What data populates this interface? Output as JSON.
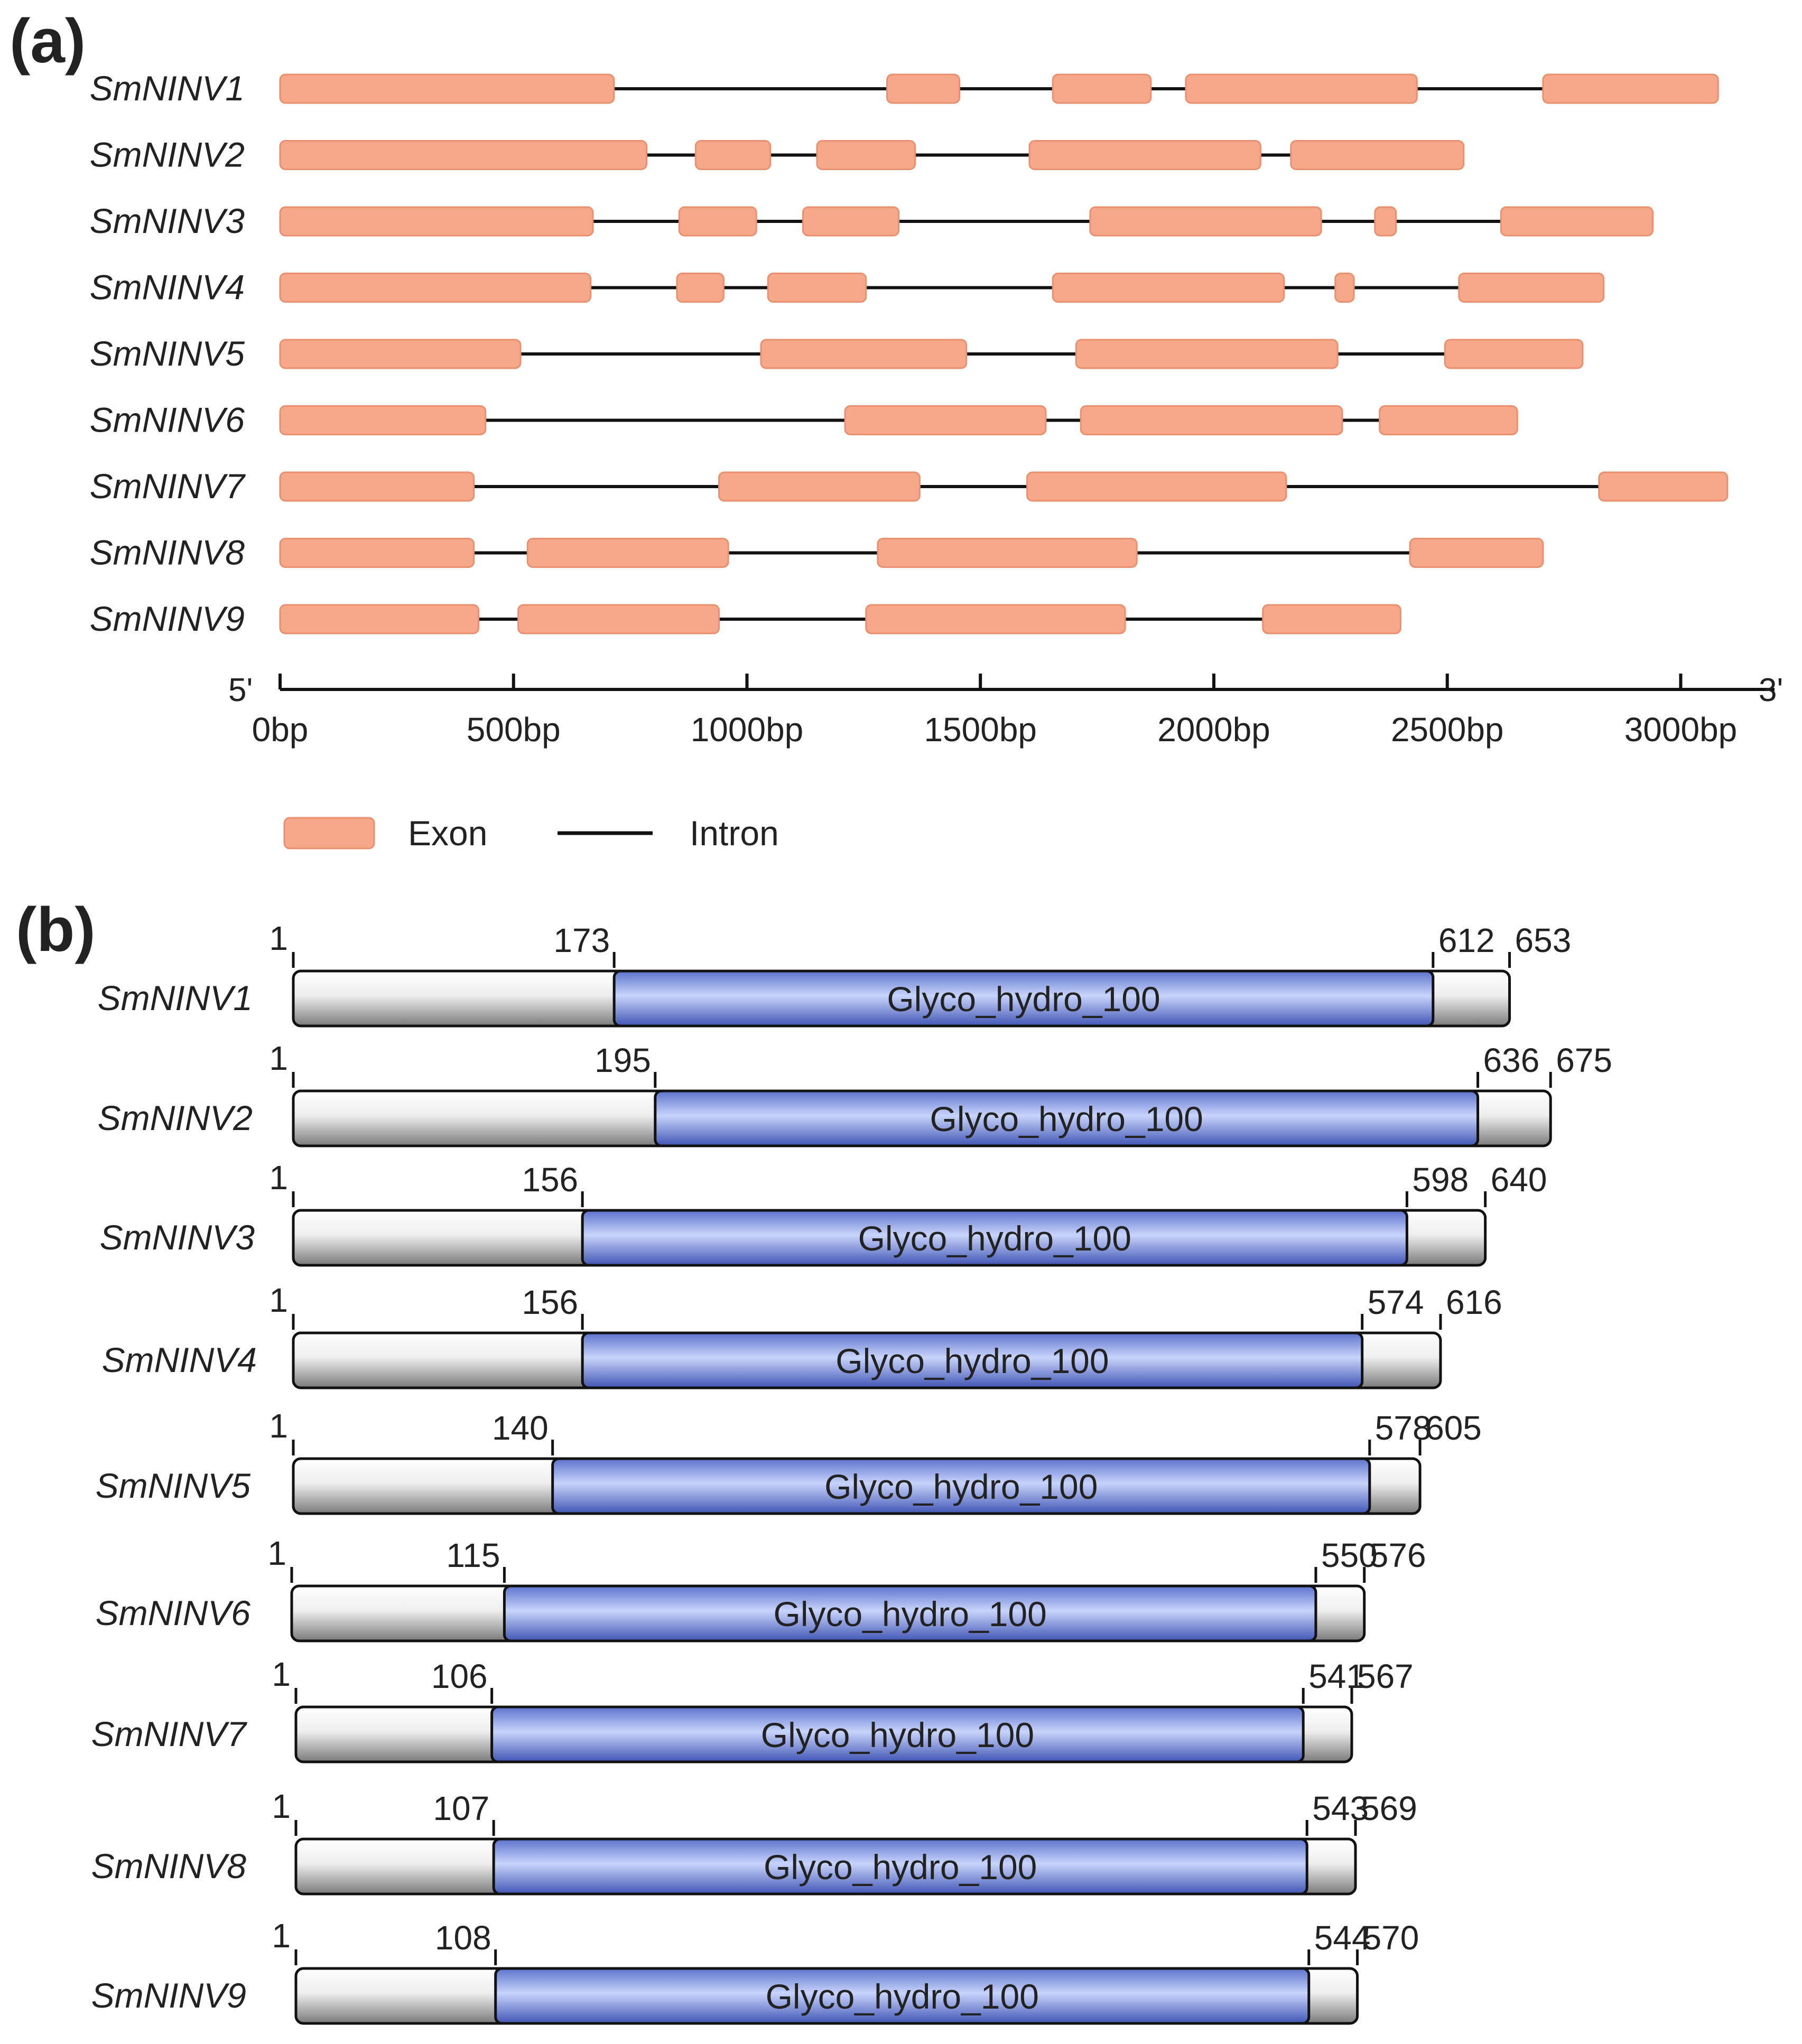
{
  "panels": {
    "a": {
      "label": "(a)",
      "axis": {
        "start_label": "5'",
        "end_label": "3'",
        "range_bp": [
          0,
          3150
        ],
        "ticks": [
          0,
          500,
          1000,
          1500,
          2000,
          2500,
          3000
        ],
        "tick_labels": [
          "0bp",
          "500bp",
          "1000bp",
          "1500bp",
          "2000bp",
          "2500bp",
          "3000bp"
        ]
      },
      "legend": {
        "exon": "Exon",
        "intron": "Intron"
      },
      "colors": {
        "exon_fill": "#f7a88a",
        "exon_stroke": "#e8906f",
        "intron": "#111111"
      },
      "genes": [
        {
          "name": "SmNINV1",
          "exons": [
            [
              0,
              715
            ],
            [
              1300,
              1455
            ],
            [
              1655,
              1865
            ],
            [
              1940,
              2435
            ],
            [
              2705,
              3080
            ]
          ],
          "length_bp": 3080
        },
        {
          "name": "SmNINV2",
          "exons": [
            [
              0,
              785
            ],
            [
              890,
              1050
            ],
            [
              1150,
              1360
            ],
            [
              1605,
              2100
            ],
            [
              2165,
              2535
            ]
          ],
          "length_bp": 2535
        },
        {
          "name": "SmNINV3",
          "exons": [
            [
              0,
              670
            ],
            [
              855,
              1020
            ],
            [
              1120,
              1325
            ],
            [
              1735,
              2230
            ],
            [
              2345,
              2390
            ],
            [
              2615,
              2940
            ]
          ],
          "length_bp": 2940
        },
        {
          "name": "SmNINV4",
          "exons": [
            [
              0,
              665
            ],
            [
              850,
              950
            ],
            [
              1045,
              1255
            ],
            [
              1655,
              2150
            ],
            [
              2260,
              2300
            ],
            [
              2525,
              2835
            ]
          ],
          "length_bp": 2835
        },
        {
          "name": "SmNINV5",
          "exons": [
            [
              0,
              515
            ],
            [
              1030,
              1470
            ],
            [
              1705,
              2265
            ],
            [
              2495,
              2790
            ]
          ],
          "length_bp": 2790
        },
        {
          "name": "SmNINV6",
          "exons": [
            [
              0,
              440
            ],
            [
              1210,
              1640
            ],
            [
              1715,
              2275
            ],
            [
              2355,
              2650
            ]
          ],
          "length_bp": 2650
        },
        {
          "name": "SmNINV7",
          "exons": [
            [
              0,
              415
            ],
            [
              940,
              1370
            ],
            [
              1600,
              2155
            ],
            [
              2825,
              3100
            ]
          ],
          "length_bp": 3100
        },
        {
          "name": "SmNINV8",
          "exons": [
            [
              0,
              415
            ],
            [
              530,
              960
            ],
            [
              1280,
              1835
            ],
            [
              2420,
              2705
            ]
          ],
          "length_bp": 2705
        },
        {
          "name": "SmNINV9",
          "exons": [
            [
              0,
              425
            ],
            [
              510,
              940
            ],
            [
              1255,
              1810
            ],
            [
              2105,
              2400
            ]
          ],
          "length_bp": 2400
        }
      ]
    },
    "b": {
      "label": "(b)",
      "domain_name": "Glyco_hydro_100",
      "colors": {
        "domain_fill": "#7f9ae8",
        "protein_fill": "#e6e6e6",
        "outline": "#111111"
      },
      "proteins": [
        {
          "name": "SmNINV1",
          "start": "1",
          "length": 653,
          "domain": [
            173,
            612
          ],
          "labels": [
            "173",
            "612",
            "653"
          ]
        },
        {
          "name": "SmNINV2",
          "start": "1",
          "length": 675,
          "domain": [
            195,
            636
          ],
          "labels": [
            "195",
            "636",
            "675"
          ]
        },
        {
          "name": "SmNINV3",
          "start": "1",
          "length": 640,
          "domain": [
            156,
            598
          ],
          "labels": [
            "156",
            "598",
            "640"
          ]
        },
        {
          "name": "SmNINV4",
          "start": "1",
          "length": 616,
          "domain": [
            156,
            574
          ],
          "labels": [
            "156",
            "574",
            "616"
          ]
        },
        {
          "name": "SmNINV5",
          "start": "1",
          "length": 605,
          "domain": [
            140,
            578
          ],
          "labels": [
            "140",
            "578",
            "605"
          ]
        },
        {
          "name": "SmNINV6",
          "start": "1",
          "length": 576,
          "domain": [
            115,
            550
          ],
          "labels": [
            "115",
            "550",
            "576"
          ]
        },
        {
          "name": "SmNINV7",
          "start": "1",
          "length": 567,
          "domain": [
            106,
            541
          ],
          "labels": [
            "106",
            "541",
            "567"
          ]
        },
        {
          "name": "SmNINV8",
          "start": "1",
          "length": 569,
          "domain": [
            107,
            543
          ],
          "labels": [
            "107",
            "543",
            "569"
          ]
        },
        {
          "name": "SmNINV9",
          "start": "1",
          "length": 570,
          "domain": [
            108,
            544
          ],
          "labels": [
            "108",
            "544",
            "570"
          ]
        }
      ]
    }
  }
}
